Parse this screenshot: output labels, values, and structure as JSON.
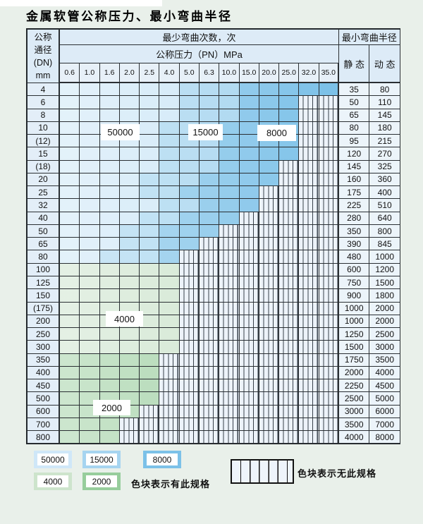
{
  "title": "金属软管公称压力、最小弯曲半径",
  "table": {
    "dn_header_lines": [
      "公称",
      "通径",
      "(DN)",
      "mm"
    ],
    "bend_cycles_header": "最少弯曲次数，次",
    "pressure_header": "公称压力（PN）MPa",
    "radius_header": "最小弯曲半径",
    "static_header": "静 态",
    "dynamic_header": "动 态",
    "pressure_columns": [
      "0.6",
      "1.0",
      "1.6",
      "2.0",
      "2.5",
      "4.0",
      "5.0",
      "6.3",
      "10.0",
      "15.0",
      "20.0",
      "25.0",
      "32.0",
      "35.0"
    ],
    "rows": [
      {
        "dn": "4",
        "static": "35",
        "dynamic": "80",
        "bands": {
          "50000": [
            1,
            6
          ],
          "15000": [
            7,
            9
          ],
          "8000": [
            10,
            14
          ]
        }
      },
      {
        "dn": "6",
        "static": "50",
        "dynamic": "110",
        "bands": {
          "50000": [
            1,
            6
          ],
          "15000": [
            7,
            9
          ],
          "8000": [
            10,
            12
          ],
          "none": [
            13,
            14
          ]
        }
      },
      {
        "dn": "8",
        "static": "65",
        "dynamic": "145",
        "bands": {
          "50000": [
            1,
            6
          ],
          "15000": [
            7,
            9
          ],
          "8000": [
            10,
            12
          ],
          "none": [
            13,
            14
          ]
        }
      },
      {
        "dn": "10",
        "static": "80",
        "dynamic": "180",
        "bands": {
          "50000": [
            1,
            5
          ],
          "15000": [
            6,
            8
          ],
          "8000": [
            9,
            12
          ],
          "none": [
            13,
            14
          ]
        }
      },
      {
        "dn": "(12)",
        "static": "95",
        "dynamic": "215",
        "bands": {
          "50000": [
            1,
            5
          ],
          "15000": [
            6,
            8
          ],
          "8000": [
            9,
            12
          ],
          "none": [
            13,
            14
          ]
        }
      },
      {
        "dn": "15",
        "static": "120",
        "dynamic": "270",
        "bands": {
          "50000": [
            1,
            5
          ],
          "15000": [
            6,
            8
          ],
          "8000": [
            9,
            12
          ],
          "none": [
            13,
            14
          ]
        }
      },
      {
        "dn": "(18)",
        "static": "145",
        "dynamic": "325",
        "bands": {
          "50000": [
            1,
            5
          ],
          "15000": [
            6,
            8
          ],
          "8000": [
            9,
            11
          ],
          "none": [
            12,
            14
          ]
        }
      },
      {
        "dn": "20",
        "static": "160",
        "dynamic": "360",
        "bands": {
          "50000": [
            1,
            4
          ],
          "15000": [
            5,
            7
          ],
          "8000": [
            8,
            11
          ],
          "none": [
            12,
            14
          ]
        }
      },
      {
        "dn": "25",
        "static": "175",
        "dynamic": "400",
        "bands": {
          "50000": [
            1,
            4
          ],
          "15000": [
            5,
            6
          ],
          "8000": [
            7,
            10
          ],
          "none": [
            11,
            14
          ]
        }
      },
      {
        "dn": "32",
        "static": "225",
        "dynamic": "510",
        "bands": {
          "50000": [
            1,
            5
          ],
          "15000": [
            6,
            7
          ],
          "8000": [
            8,
            10
          ],
          "none": [
            11,
            14
          ]
        }
      },
      {
        "dn": "40",
        "static": "280",
        "dynamic": "640",
        "bands": {
          "50000": [
            1,
            4
          ],
          "15000": [
            5,
            6
          ],
          "8000": [
            7,
            9
          ],
          "none": [
            10,
            14
          ]
        }
      },
      {
        "dn": "50",
        "static": "350",
        "dynamic": "800",
        "bands": {
          "50000": [
            1,
            3
          ],
          "15000": [
            4,
            5
          ],
          "8000": [
            6,
            8
          ],
          "none": [
            9,
            14
          ]
        }
      },
      {
        "dn": "65",
        "static": "390",
        "dynamic": "845",
        "bands": {
          "50000": [
            1,
            3
          ],
          "15000": [
            4,
            5
          ],
          "8000": [
            6,
            7
          ],
          "none": [
            8,
            14
          ]
        }
      },
      {
        "dn": "80",
        "static": "480",
        "dynamic": "1000",
        "bands": {
          "50000": [
            1,
            2
          ],
          "15000": [
            3,
            5
          ],
          "8000": [
            6,
            6
          ],
          "none": [
            7,
            14
          ]
        }
      },
      {
        "dn": "100",
        "static": "600",
        "dynamic": "1200",
        "bands": {
          "4000": [
            1,
            6
          ],
          "none": [
            7,
            14
          ]
        }
      },
      {
        "dn": "125",
        "static": "750",
        "dynamic": "1500",
        "bands": {
          "4000": [
            1,
            6
          ],
          "none": [
            7,
            14
          ]
        }
      },
      {
        "dn": "150",
        "static": "900",
        "dynamic": "1800",
        "bands": {
          "4000": [
            1,
            6
          ],
          "none": [
            7,
            14
          ]
        }
      },
      {
        "dn": "(175)",
        "static": "1000",
        "dynamic": "2000",
        "bands": {
          "4000": [
            1,
            6
          ],
          "none": [
            7,
            14
          ]
        }
      },
      {
        "dn": "200",
        "static": "1000",
        "dynamic": "2000",
        "bands": {
          "4000": [
            1,
            6
          ],
          "none": [
            7,
            14
          ]
        }
      },
      {
        "dn": "250",
        "static": "1250",
        "dynamic": "2500",
        "bands": {
          "4000": [
            1,
            6
          ],
          "none": [
            7,
            14
          ]
        }
      },
      {
        "dn": "300",
        "static": "1500",
        "dynamic": "3000",
        "bands": {
          "4000": [
            1,
            6
          ],
          "none": [
            7,
            14
          ]
        }
      },
      {
        "dn": "350",
        "static": "1750",
        "dynamic": "3500",
        "bands": {
          "2000": [
            1,
            5
          ],
          "none": [
            6,
            14
          ]
        }
      },
      {
        "dn": "400",
        "static": "2000",
        "dynamic": "4000",
        "bands": {
          "2000": [
            1,
            5
          ],
          "none": [
            6,
            14
          ]
        }
      },
      {
        "dn": "450",
        "static": "2250",
        "dynamic": "4500",
        "bands": {
          "2000": [
            1,
            5
          ],
          "none": [
            6,
            14
          ]
        }
      },
      {
        "dn": "500",
        "static": "2500",
        "dynamic": "5000",
        "bands": {
          "2000": [
            1,
            5
          ],
          "none": [
            6,
            14
          ]
        }
      },
      {
        "dn": "600",
        "static": "3000",
        "dynamic": "6000",
        "bands": {
          "2000": [
            1,
            4
          ],
          "none": [
            5,
            14
          ]
        }
      },
      {
        "dn": "700",
        "static": "3500",
        "dynamic": "7000",
        "bands": {
          "2000": [
            1,
            3
          ],
          "none": [
            4,
            14
          ]
        }
      },
      {
        "dn": "800",
        "static": "4000",
        "dynamic": "8000",
        "bands": {
          "2000": [
            1,
            3
          ],
          "none": [
            4,
            14
          ]
        }
      }
    ]
  },
  "in_table_labels": [
    "50000",
    "15000",
    "8000",
    "4000",
    "2000"
  ],
  "legend": {
    "items": [
      {
        "label": "50000",
        "color": "#cfe7f8"
      },
      {
        "label": "15000",
        "color": "#a6d4f0"
      },
      {
        "label": "8000",
        "color": "#7cc1e8"
      },
      {
        "label": "4000",
        "color": "#cde4cc"
      },
      {
        "label": "2000",
        "color": "#97cd9c"
      }
    ],
    "has_spec_text": "色块表示有此规格",
    "no_spec_text": "色块表示无此规格"
  },
  "colors": {
    "50000": "#c7e4f6",
    "15000": "#a0d2ee",
    "8000": "#7cc1e8",
    "4000": "#c9e2c9",
    "2000": "#98cd9d"
  }
}
